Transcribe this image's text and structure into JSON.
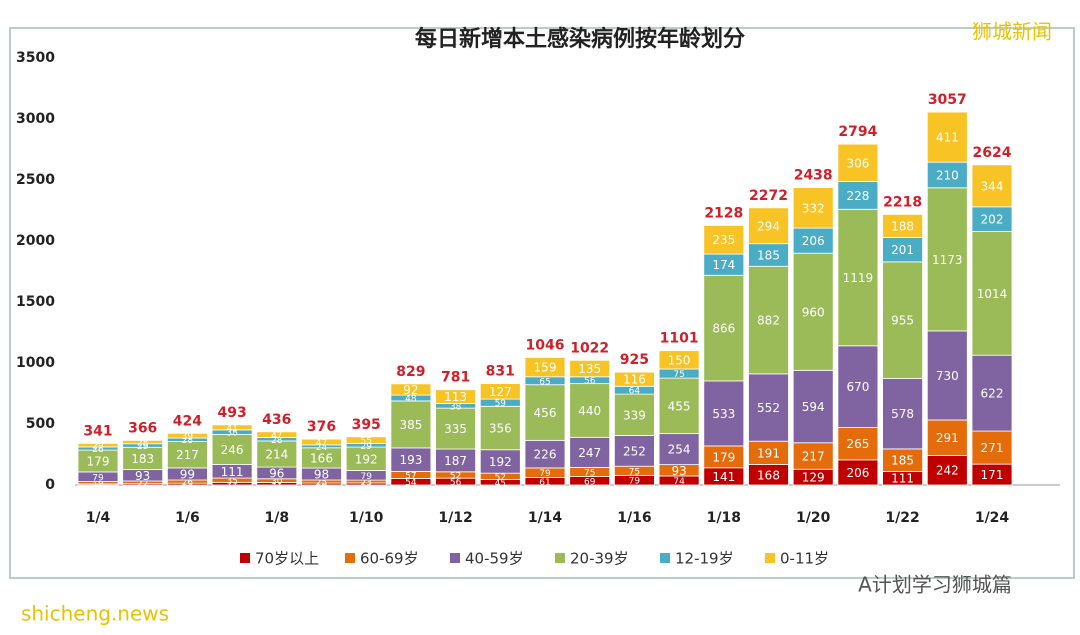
{
  "chart_data": {
    "type": "stacked_bar",
    "title": "每日新增本土感染病例按年龄划分",
    "annotations": [
      "狮城新闻",
      "A计划学习狮城篇",
      "shicheng.news"
    ],
    "categories": [
      "1/4",
      null,
      "1/6",
      null,
      "1/8",
      null,
      "1/10",
      null,
      "1/12",
      null,
      "1/14",
      null,
      "1/16",
      null,
      "1/18",
      null,
      "1/20",
      null,
      "1/22",
      null,
      "1/24"
    ],
    "series": [
      {
        "name": "70岁以上",
        "color": "#c00000",
        "values": [
          9,
          11,
          15,
          22,
          21,
          16,
          17,
          54,
          56,
          45,
          61,
          69,
          79,
          74,
          141,
          168,
          129,
          206,
          111,
          242,
          171
        ]
      },
      {
        "name": "60-69岁",
        "color": "#e46c0a",
        "values": [
          19,
          22,
          26,
          35,
          30,
          25,
          23,
          57,
          52,
          52,
          79,
          75,
          75,
          93,
          179,
          191,
          217,
          265,
          185,
          291,
          271
        ]
      },
      {
        "name": "40-59岁",
        "color": "#8064a2",
        "values": [
          79,
          93,
          99,
          111,
          96,
          98,
          79,
          193,
          187,
          192,
          226,
          247,
          252,
          254,
          533,
          552,
          594,
          670,
          578,
          730,
          622
        ]
      },
      {
        "name": "20-39岁",
        "color": "#9bbb59",
        "values": [
          179,
          183,
          217,
          246,
          214,
          166,
          192,
          385,
          335,
          356,
          456,
          440,
          339,
          455,
          866,
          882,
          960,
          1119,
          955,
          1173,
          1014
        ]
      },
      {
        "name": "12-19岁",
        "color": "#4bacc6",
        "values": [
          26,
          29,
          28,
          38,
          28,
          24,
          29,
          48,
          38,
          59,
          65,
          56,
          64,
          75,
          174,
          185,
          206,
          228,
          201,
          210,
          202
        ]
      },
      {
        "name": "0-11岁",
        "color": "#f7c325",
        "values": [
          29,
          28,
          39,
          41,
          47,
          47,
          55,
          92,
          113,
          127,
          159,
          135,
          116,
          150,
          235,
          294,
          332,
          306,
          188,
          411,
          344
        ]
      }
    ],
    "totals": [
      341,
      366,
      424,
      493,
      436,
      376,
      395,
      829,
      781,
      831,
      1046,
      1022,
      925,
      1101,
      2128,
      2272,
      2438,
      2794,
      2218,
      3057,
      2624
    ],
    "ylim": [
      0,
      3500
    ],
    "yticks": [
      0,
      500,
      1000,
      1500,
      2000,
      2500,
      3000,
      3500
    ],
    "grid": false,
    "legend": "bottom"
  }
}
